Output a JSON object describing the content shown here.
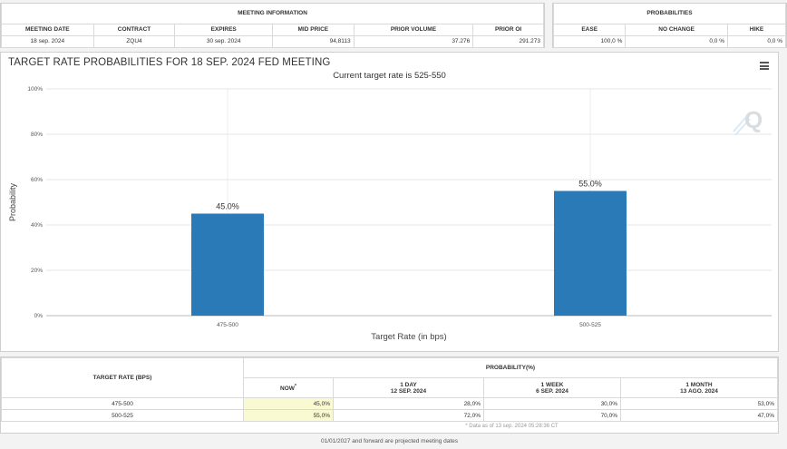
{
  "meeting_info": {
    "title": "MEETING INFORMATION",
    "headers": [
      "MEETING DATE",
      "CONTRACT",
      "EXPIRES",
      "MID PRICE",
      "PRIOR VOLUME",
      "PRIOR OI"
    ],
    "row": [
      "18 sep. 2024",
      "ZQU4",
      "30 sep. 2024",
      "94,8113",
      "37.276",
      "291.273"
    ]
  },
  "probabilities": {
    "title": "PROBABILITIES",
    "headers": [
      "EASE",
      "NO CHANGE",
      "HIKE"
    ],
    "row": [
      "100,0 %",
      "0,0 %",
      "0,0 %"
    ]
  },
  "chart": {
    "title": "TARGET RATE PROBABILITIES FOR 18 SEP. 2024 FED MEETING",
    "subtitle": "Current target rate is 525-550",
    "menu_icon": "hamburger-menu-icon",
    "watermark_icon": "q-logo-icon"
  },
  "chart_data": {
    "type": "bar",
    "categories": [
      "475-500",
      "500-525"
    ],
    "values": [
      45.0,
      55.0
    ],
    "data_labels": [
      "45.0%",
      "55.0%"
    ],
    "xlabel": "Target Rate (in bps)",
    "ylabel": "Probability",
    "ylim": [
      0,
      100
    ],
    "yticks": [
      "0%",
      "20%",
      "40%",
      "60%",
      "80%",
      "100%"
    ],
    "grid": true,
    "bar_color": "#2a7ab8"
  },
  "bottom_table": {
    "col1_header": "TARGET RATE (BPS)",
    "group_header": "PROBABILITY(%)",
    "columns": [
      {
        "line1": "NOW",
        "line2": "*"
      },
      {
        "line1": "1 DAY",
        "line2": "12 SEP. 2024"
      },
      {
        "line1": "1 WEEK",
        "line2": "6 SEP. 2024"
      },
      {
        "line1": "1 MONTH",
        "line2": "13 AGO. 2024"
      }
    ],
    "rows": [
      {
        "rate": "475-500",
        "values": [
          "45,0%",
          "28,0%",
          "30,0%",
          "53,0%"
        ]
      },
      {
        "rate": "500-525",
        "values": [
          "55,0%",
          "72,0%",
          "70,0%",
          "47,0%"
        ]
      }
    ],
    "note": "* Data as of 13 sep. 2024 05:28:36 CT"
  },
  "footer": "01/01/2027 and forward are projected meeting dates"
}
